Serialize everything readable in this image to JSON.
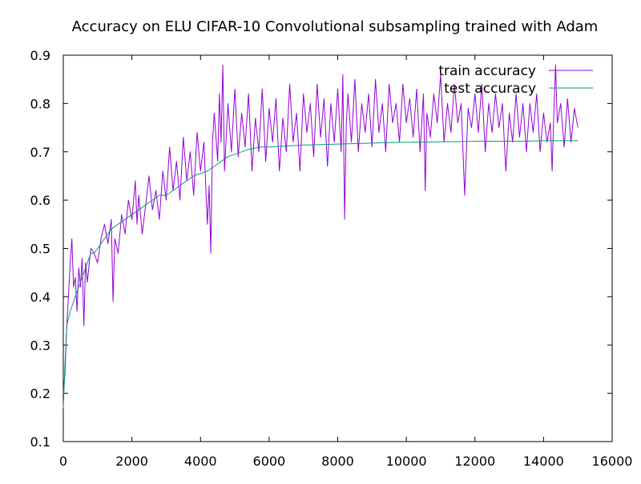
{
  "chart_data": {
    "type": "line",
    "title": "Accuracy on ELU CIFAR-10 Convolutional subsampling trained with Adam",
    "xlabel": "",
    "ylabel": "",
    "xlim": [
      0,
      16000
    ],
    "ylim": [
      0.1,
      0.9
    ],
    "x_ticks": [
      0,
      2000,
      4000,
      6000,
      8000,
      10000,
      12000,
      14000,
      16000
    ],
    "y_ticks": [
      0.1,
      0.2,
      0.3,
      0.4,
      0.5,
      0.6,
      0.7,
      0.8,
      0.9
    ],
    "x_tick_labels": [
      "0",
      "2000",
      "4000",
      "6000",
      "8000",
      "10000",
      "12000",
      "14000",
      "16000"
    ],
    "y_tick_labels": [
      "0.1",
      "0.2",
      "0.3",
      "0.4",
      "0.5",
      "0.6",
      "0.7",
      "0.8",
      "0.9"
    ],
    "grid": false,
    "legend_position": "top-right",
    "series": [
      {
        "name": "train accuracy",
        "color": "#9400d3",
        "points": [
          [
            0,
            0.2
          ],
          [
            50,
            0.24
          ],
          [
            100,
            0.34
          ],
          [
            150,
            0.4
          ],
          [
            200,
            0.47
          ],
          [
            250,
            0.52
          ],
          [
            300,
            0.42
          ],
          [
            350,
            0.44
          ],
          [
            400,
            0.37
          ],
          [
            450,
            0.46
          ],
          [
            500,
            0.42
          ],
          [
            550,
            0.48
          ],
          [
            600,
            0.34
          ],
          [
            650,
            0.47
          ],
          [
            700,
            0.43
          ],
          [
            800,
            0.5
          ],
          [
            900,
            0.49
          ],
          [
            1000,
            0.47
          ],
          [
            1100,
            0.52
          ],
          [
            1200,
            0.55
          ],
          [
            1300,
            0.51
          ],
          [
            1400,
            0.56
          ],
          [
            1450,
            0.39
          ],
          [
            1500,
            0.52
          ],
          [
            1600,
            0.49
          ],
          [
            1700,
            0.57
          ],
          [
            1800,
            0.53
          ],
          [
            1900,
            0.6
          ],
          [
            2000,
            0.56
          ],
          [
            2100,
            0.64
          ],
          [
            2150,
            0.55
          ],
          [
            2200,
            0.61
          ],
          [
            2300,
            0.53
          ],
          [
            2400,
            0.59
          ],
          [
            2500,
            0.65
          ],
          [
            2600,
            0.58
          ],
          [
            2700,
            0.62
          ],
          [
            2800,
            0.56
          ],
          [
            2900,
            0.66
          ],
          [
            3000,
            0.6
          ],
          [
            3100,
            0.71
          ],
          [
            3200,
            0.62
          ],
          [
            3300,
            0.68
          ],
          [
            3400,
            0.6
          ],
          [
            3500,
            0.73
          ],
          [
            3600,
            0.64
          ],
          [
            3700,
            0.7
          ],
          [
            3800,
            0.61
          ],
          [
            3900,
            0.74
          ],
          [
            4000,
            0.66
          ],
          [
            4100,
            0.72
          ],
          [
            4200,
            0.55
          ],
          [
            4250,
            0.63
          ],
          [
            4300,
            0.49
          ],
          [
            4350,
            0.72
          ],
          [
            4400,
            0.78
          ],
          [
            4500,
            0.68
          ],
          [
            4550,
            0.82
          ],
          [
            4600,
            0.72
          ],
          [
            4650,
            0.88
          ],
          [
            4700,
            0.66
          ],
          [
            4800,
            0.8
          ],
          [
            4900,
            0.7
          ],
          [
            5000,
            0.83
          ],
          [
            5100,
            0.69
          ],
          [
            5200,
            0.78
          ],
          [
            5300,
            0.71
          ],
          [
            5400,
            0.82
          ],
          [
            5500,
            0.66
          ],
          [
            5600,
            0.77
          ],
          [
            5700,
            0.7
          ],
          [
            5800,
            0.83
          ],
          [
            5900,
            0.68
          ],
          [
            6000,
            0.79
          ],
          [
            6100,
            0.72
          ],
          [
            6200,
            0.81
          ],
          [
            6300,
            0.66
          ],
          [
            6400,
            0.77
          ],
          [
            6500,
            0.7
          ],
          [
            6600,
            0.84
          ],
          [
            6700,
            0.72
          ],
          [
            6800,
            0.78
          ],
          [
            6900,
            0.66
          ],
          [
            7000,
            0.82
          ],
          [
            7100,
            0.74
          ],
          [
            7200,
            0.8
          ],
          [
            7300,
            0.69
          ],
          [
            7400,
            0.84
          ],
          [
            7500,
            0.73
          ],
          [
            7600,
            0.81
          ],
          [
            7700,
            0.67
          ],
          [
            7800,
            0.8
          ],
          [
            7900,
            0.72
          ],
          [
            8000,
            0.83
          ],
          [
            8100,
            0.7
          ],
          [
            8150,
            0.86
          ],
          [
            8200,
            0.56
          ],
          [
            8250,
            0.76
          ],
          [
            8300,
            0.82
          ],
          [
            8400,
            0.72
          ],
          [
            8500,
            0.85
          ],
          [
            8600,
            0.7
          ],
          [
            8700,
            0.8
          ],
          [
            8800,
            0.74
          ],
          [
            8900,
            0.82
          ],
          [
            9000,
            0.71
          ],
          [
            9100,
            0.85
          ],
          [
            9200,
            0.74
          ],
          [
            9300,
            0.8
          ],
          [
            9400,
            0.7
          ],
          [
            9500,
            0.84
          ],
          [
            9600,
            0.76
          ],
          [
            9700,
            0.8
          ],
          [
            9800,
            0.72
          ],
          [
            9900,
            0.84
          ],
          [
            10000,
            0.76
          ],
          [
            10100,
            0.81
          ],
          [
            10200,
            0.73
          ],
          [
            10300,
            0.83
          ],
          [
            10400,
            0.7
          ],
          [
            10500,
            0.82
          ],
          [
            10550,
            0.62
          ],
          [
            10600,
            0.78
          ],
          [
            10700,
            0.73
          ],
          [
            10800,
            0.82
          ],
          [
            10900,
            0.76
          ],
          [
            11000,
            0.86
          ],
          [
            11100,
            0.72
          ],
          [
            11200,
            0.8
          ],
          [
            11300,
            0.74
          ],
          [
            11400,
            0.84
          ],
          [
            11500,
            0.76
          ],
          [
            11600,
            0.8
          ],
          [
            11700,
            0.61
          ],
          [
            11800,
            0.79
          ],
          [
            11900,
            0.75
          ],
          [
            12000,
            0.82
          ],
          [
            12100,
            0.74
          ],
          [
            12200,
            0.84
          ],
          [
            12300,
            0.7
          ],
          [
            12400,
            0.8
          ],
          [
            12500,
            0.74
          ],
          [
            12600,
            0.82
          ],
          [
            12700,
            0.75
          ],
          [
            12800,
            0.8
          ],
          [
            12900,
            0.66
          ],
          [
            13000,
            0.78
          ],
          [
            13100,
            0.72
          ],
          [
            13200,
            0.82
          ],
          [
            13300,
            0.73
          ],
          [
            13400,
            0.8
          ],
          [
            13500,
            0.7
          ],
          [
            13600,
            0.8
          ],
          [
            13700,
            0.74
          ],
          [
            13800,
            0.82
          ],
          [
            13900,
            0.7
          ],
          [
            14000,
            0.78
          ],
          [
            14100,
            0.72
          ],
          [
            14200,
            0.76
          ],
          [
            14250,
            0.66
          ],
          [
            14300,
            0.78
          ],
          [
            14350,
            0.88
          ],
          [
            14400,
            0.76
          ],
          [
            14500,
            0.8
          ],
          [
            14600,
            0.71
          ],
          [
            14700,
            0.81
          ],
          [
            14800,
            0.72
          ],
          [
            14900,
            0.79
          ],
          [
            15000,
            0.75
          ]
        ]
      },
      {
        "name": "test accuracy",
        "color": "#009e73",
        "points": [
          [
            0,
            0.17
          ],
          [
            50,
            0.26
          ],
          [
            100,
            0.34
          ],
          [
            200,
            0.37
          ],
          [
            300,
            0.39
          ],
          [
            400,
            0.41
          ],
          [
            500,
            0.43
          ],
          [
            600,
            0.45
          ],
          [
            700,
            0.47
          ],
          [
            800,
            0.49
          ],
          [
            900,
            0.49
          ],
          [
            1000,
            0.5
          ],
          [
            1200,
            0.52
          ],
          [
            1400,
            0.54
          ],
          [
            1600,
            0.55
          ],
          [
            1800,
            0.56
          ],
          [
            2000,
            0.57
          ],
          [
            2200,
            0.58
          ],
          [
            2400,
            0.59
          ],
          [
            2600,
            0.6
          ],
          [
            2800,
            0.61
          ],
          [
            3000,
            0.61
          ],
          [
            3200,
            0.62
          ],
          [
            3400,
            0.63
          ],
          [
            3600,
            0.64
          ],
          [
            3800,
            0.65
          ],
          [
            4000,
            0.655
          ],
          [
            4200,
            0.66
          ],
          [
            4400,
            0.67
          ],
          [
            4600,
            0.68
          ],
          [
            4800,
            0.69
          ],
          [
            5000,
            0.695
          ],
          [
            5200,
            0.7
          ],
          [
            5400,
            0.705
          ],
          [
            5600,
            0.708
          ],
          [
            5800,
            0.71
          ],
          [
            6000,
            0.71
          ],
          [
            6500,
            0.712
          ],
          [
            7000,
            0.714
          ],
          [
            7500,
            0.715
          ],
          [
            8000,
            0.716
          ],
          [
            8500,
            0.717
          ],
          [
            9000,
            0.718
          ],
          [
            9500,
            0.719
          ],
          [
            10000,
            0.72
          ],
          [
            10500,
            0.72
          ],
          [
            11000,
            0.721
          ],
          [
            11500,
            0.721
          ],
          [
            12000,
            0.722
          ],
          [
            12500,
            0.722
          ],
          [
            13000,
            0.722
          ],
          [
            13500,
            0.722
          ],
          [
            14000,
            0.723
          ],
          [
            14500,
            0.723
          ],
          [
            15000,
            0.723
          ]
        ]
      }
    ]
  }
}
